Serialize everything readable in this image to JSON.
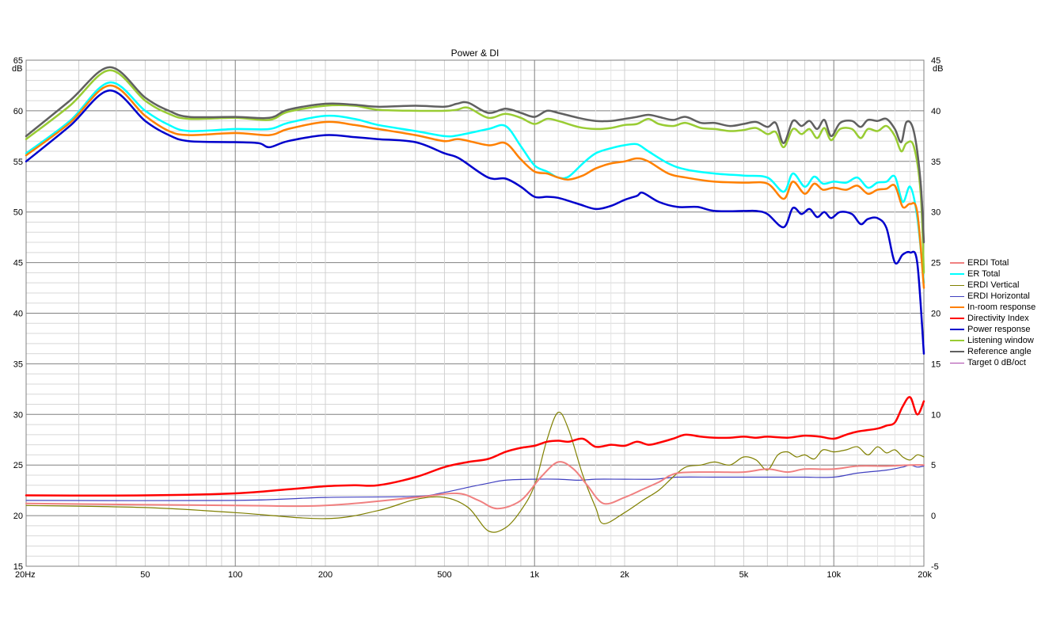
{
  "chart_data": {
    "type": "line",
    "title": "Power & DI",
    "x_scale": "log",
    "xlim": [
      20,
      20000
    ],
    "ylim_left": [
      15,
      65
    ],
    "ylim_right": [
      -5,
      45
    ],
    "y_unit_left": "dB",
    "y_unit_right": "dB",
    "grid": true,
    "legend_position": "right",
    "x_ticks": [
      {
        "value": 20,
        "label": "20Hz"
      },
      {
        "value": 50,
        "label": "50"
      },
      {
        "value": 100,
        "label": "100"
      },
      {
        "value": 200,
        "label": "200"
      },
      {
        "value": 500,
        "label": "500"
      },
      {
        "value": 1000,
        "label": "1k"
      },
      {
        "value": 2000,
        "label": "2k"
      },
      {
        "value": 5000,
        "label": "5k"
      },
      {
        "value": 10000,
        "label": "10k"
      },
      {
        "value": 20000,
        "label": "20k"
      }
    ],
    "y_ticks_left": [
      65,
      60,
      55,
      50,
      45,
      40,
      35,
      30,
      25,
      20,
      15
    ],
    "y_ticks_right": [
      45,
      40,
      35,
      30,
      25,
      20,
      15,
      10,
      5,
      0,
      -5
    ],
    "series": [
      {
        "name": "ERDI Total",
        "axis": "right",
        "color": "#f08080",
        "width": 2,
        "x": [
          20,
          100,
          200,
          400,
          550,
          650,
          750,
          900,
          1050,
          1200,
          1350,
          1500,
          1700,
          2000,
          2300,
          2600,
          3000,
          4000,
          5000,
          6000,
          7000,
          8000,
          10000,
          12000,
          15000,
          18000,
          20000
        ],
        "y": [
          1.2,
          1.0,
          1.0,
          1.8,
          2.2,
          1.5,
          0.7,
          1.5,
          3.8,
          5.3,
          4.6,
          3.0,
          1.2,
          1.8,
          2.6,
          3.3,
          4.2,
          4.3,
          4.3,
          4.6,
          4.3,
          4.6,
          4.6,
          4.9,
          4.9,
          5.0,
          5.0
        ]
      },
      {
        "name": "ER Total",
        "axis": "left",
        "color": "#00ffff",
        "width": 2.5,
        "x": [
          20,
          28,
          38,
          50,
          60,
          70,
          100,
          130,
          150,
          200,
          250,
          300,
          400,
          500,
          560,
          700,
          800,
          900,
          1000,
          1100,
          1200,
          1300,
          1450,
          1600,
          1800,
          2000,
          2200,
          2400,
          2800,
          3200,
          4000,
          5000,
          6000,
          6800,
          7300,
          8000,
          8600,
          9200,
          10000,
          11000,
          12000,
          13000,
          14000,
          15000,
          16000,
          17000,
          18000,
          19000,
          20000
        ],
        "y": [
          55.8,
          59.0,
          62.8,
          60.0,
          58.6,
          58.0,
          58.2,
          58.2,
          58.8,
          59.5,
          59.2,
          58.6,
          58.0,
          57.5,
          57.6,
          58.2,
          58.5,
          56.5,
          54.6,
          54.0,
          53.4,
          53.5,
          54.8,
          55.8,
          56.3,
          56.6,
          56.7,
          56.0,
          54.8,
          54.2,
          53.8,
          53.6,
          53.4,
          52.0,
          53.8,
          52.5,
          53.5,
          52.8,
          53.0,
          52.9,
          53.4,
          52.4,
          52.9,
          53.0,
          53.5,
          51.0,
          52.5,
          49.5,
          43.0
        ]
      },
      {
        "name": "ERDI Vertical",
        "axis": "right",
        "color": "#808000",
        "width": 1.2,
        "x": [
          20,
          50,
          100,
          200,
          300,
          400,
          500,
          600,
          700,
          800,
          900,
          1000,
          1100,
          1200,
          1300,
          1450,
          1600,
          1700,
          2000,
          2300,
          2600,
          2900,
          3200,
          3600,
          4000,
          4500,
          5000,
          5500,
          6000,
          6500,
          7000,
          7500,
          8000,
          8600,
          9200,
          10000,
          11000,
          12000,
          13000,
          14000,
          15000,
          16000,
          17000,
          18000,
          19000,
          20000
        ],
        "y": [
          1.0,
          0.8,
          0.3,
          -0.3,
          0.5,
          1.6,
          1.8,
          0.8,
          -1.5,
          -1.2,
          0.5,
          3.0,
          7.5,
          10.2,
          8.5,
          4.0,
          0.8,
          -0.8,
          0.3,
          1.5,
          2.5,
          3.8,
          4.8,
          5.0,
          5.3,
          5.0,
          5.8,
          5.5,
          4.5,
          6.0,
          6.3,
          5.8,
          6.0,
          5.6,
          6.5,
          6.3,
          6.5,
          6.8,
          6.0,
          6.8,
          6.2,
          6.5,
          5.8,
          5.5,
          6.0,
          5.8
        ]
      },
      {
        "name": "ERDI Horizontal",
        "axis": "right",
        "color": "#4040c0",
        "width": 1.2,
        "x": [
          20,
          100,
          200,
          400,
          500,
          600,
          700,
          800,
          1000,
          1200,
          1400,
          1600,
          2000,
          2500,
          3000,
          4000,
          5000,
          6000,
          7000,
          8000,
          10000,
          12000,
          15000,
          17000,
          18000,
          19000,
          20000
        ],
        "y": [
          1.5,
          1.5,
          1.8,
          1.9,
          2.3,
          2.8,
          3.2,
          3.5,
          3.6,
          3.6,
          3.5,
          3.6,
          3.6,
          3.6,
          3.8,
          3.8,
          3.8,
          3.8,
          3.8,
          3.8,
          3.8,
          4.2,
          4.5,
          4.8,
          5.0,
          4.8,
          4.9
        ]
      },
      {
        "name": "In-room response",
        "axis": "left",
        "color": "#ff8000",
        "width": 2.5,
        "x": [
          20,
          28,
          38,
          50,
          60,
          70,
          100,
          130,
          150,
          200,
          250,
          300,
          400,
          500,
          560,
          700,
          800,
          900,
          1000,
          1100,
          1200,
          1300,
          1450,
          1600,
          1800,
          2000,
          2200,
          2400,
          2800,
          3200,
          4000,
          5000,
          6000,
          6800,
          7300,
          8000,
          8600,
          9200,
          10000,
          11000,
          12000,
          13000,
          14000,
          15000,
          16000,
          17000,
          18000,
          19000,
          20000
        ],
        "y": [
          55.6,
          58.8,
          62.5,
          59.5,
          58.0,
          57.6,
          57.8,
          57.6,
          58.2,
          58.9,
          58.6,
          58.2,
          57.6,
          57.0,
          57.2,
          56.6,
          56.8,
          55.2,
          54.0,
          53.8,
          53.4,
          53.2,
          53.6,
          54.3,
          54.8,
          55.0,
          55.3,
          55.0,
          53.8,
          53.4,
          53.0,
          52.9,
          52.8,
          51.3,
          53.0,
          51.8,
          52.8,
          52.2,
          52.4,
          52.2,
          52.6,
          51.8,
          52.2,
          52.3,
          52.6,
          50.5,
          50.8,
          50.0,
          42.5
        ]
      },
      {
        "name": "Directivity Index",
        "axis": "right",
        "color": "#ff0000",
        "width": 2.5,
        "x": [
          20,
          50,
          100,
          150,
          200,
          250,
          300,
          400,
          500,
          600,
          700,
          800,
          900,
          1000,
          1100,
          1200,
          1300,
          1450,
          1600,
          1800,
          2000,
          2200,
          2400,
          2600,
          2900,
          3200,
          3600,
          4000,
          4500,
          5000,
          5500,
          6000,
          7000,
          8000,
          9000,
          10000,
          11000,
          12000,
          14000,
          15000,
          16000,
          17000,
          18000,
          19000,
          20000
        ],
        "y": [
          2.0,
          2.0,
          2.2,
          2.6,
          2.9,
          3.0,
          3.0,
          3.8,
          4.8,
          5.3,
          5.6,
          6.3,
          6.7,
          6.9,
          7.3,
          7.4,
          7.3,
          7.6,
          6.8,
          7.0,
          6.9,
          7.3,
          7.0,
          7.2,
          7.6,
          8.0,
          7.8,
          7.7,
          7.7,
          7.8,
          7.7,
          7.8,
          7.7,
          7.9,
          7.8,
          7.6,
          8.0,
          8.3,
          8.6,
          8.9,
          9.2,
          10.8,
          11.7,
          10.0,
          11.3
        ]
      },
      {
        "name": "Power response",
        "axis": "left",
        "color": "#0000cc",
        "width": 2.5,
        "x": [
          20,
          28,
          38,
          50,
          60,
          70,
          100,
          120,
          130,
          150,
          200,
          250,
          300,
          400,
          500,
          560,
          700,
          800,
          900,
          1000,
          1100,
          1200,
          1400,
          1600,
          1800,
          2000,
          2200,
          2300,
          2600,
          3000,
          3500,
          4000,
          5000,
          5500,
          6000,
          6800,
          7300,
          7800,
          8300,
          8800,
          9300,
          9800,
          10500,
          11500,
          12300,
          13000,
          14000,
          15000,
          16000,
          17000,
          18000,
          19000,
          20000
        ],
        "y": [
          55.0,
          58.5,
          62.0,
          59.0,
          57.6,
          57.0,
          56.9,
          56.8,
          56.4,
          57.0,
          57.6,
          57.4,
          57.2,
          56.9,
          55.8,
          55.3,
          53.4,
          53.3,
          52.5,
          51.5,
          51.5,
          51.4,
          50.8,
          50.3,
          50.6,
          51.2,
          51.6,
          51.9,
          51.0,
          50.5,
          50.5,
          50.1,
          50.1,
          50.1,
          49.8,
          48.5,
          50.4,
          49.8,
          50.3,
          49.5,
          50.0,
          49.4,
          50.0,
          49.8,
          48.8,
          49.3,
          49.4,
          48.4,
          45.0,
          45.8,
          46.0,
          45.0,
          36.0
        ]
      },
      {
        "name": "Listening window",
        "axis": "left",
        "color": "#99cc33",
        "width": 2.5,
        "x": [
          20,
          28,
          38,
          50,
          60,
          70,
          100,
          130,
          150,
          200,
          250,
          300,
          400,
          500,
          550,
          600,
          700,
          800,
          900,
          1000,
          1100,
          1200,
          1400,
          1600,
          1800,
          2000,
          2200,
          2400,
          2600,
          2900,
          3200,
          3600,
          4000,
          4500,
          5000,
          5500,
          6000,
          6400,
          6800,
          7300,
          7800,
          8300,
          8800,
          9300,
          9800,
          10500,
          11500,
          12300,
          13000,
          14000,
          15000,
          16000,
          16800,
          17500,
          18500,
          19500,
          20000
        ],
        "y": [
          57.2,
          60.5,
          64.0,
          61.0,
          59.7,
          59.2,
          59.3,
          59.1,
          59.9,
          60.5,
          60.5,
          60.1,
          60.0,
          60.0,
          60.1,
          60.3,
          59.3,
          59.7,
          59.3,
          58.7,
          59.2,
          59.0,
          58.4,
          58.2,
          58.3,
          58.6,
          58.7,
          59.2,
          58.7,
          58.5,
          58.8,
          58.3,
          58.2,
          58.0,
          58.1,
          58.3,
          57.7,
          57.9,
          56.4,
          58.2,
          57.7,
          58.2,
          57.3,
          58.3,
          57.1,
          58.2,
          58.2,
          57.3,
          58.2,
          58.0,
          58.5,
          57.5,
          56.0,
          56.8,
          56.5,
          52.0,
          44.0
        ]
      },
      {
        "name": "Reference angle",
        "axis": "left",
        "color": "#606060",
        "width": 2.5,
        "x": [
          20,
          28,
          38,
          50,
          60,
          70,
          100,
          130,
          150,
          200,
          250,
          300,
          400,
          500,
          550,
          600,
          700,
          800,
          900,
          1000,
          1100,
          1200,
          1400,
          1600,
          1800,
          2000,
          2200,
          2400,
          2600,
          2900,
          3200,
          3600,
          4000,
          4500,
          5000,
          5500,
          6000,
          6400,
          6800,
          7300,
          7800,
          8300,
          8800,
          9300,
          9800,
          10500,
          11500,
          12300,
          13000,
          14000,
          15000,
          16000,
          16800,
          17500,
          18500,
          19500,
          20000
        ],
        "y": [
          57.5,
          61.0,
          64.3,
          61.3,
          60.0,
          59.4,
          59.4,
          59.3,
          60.1,
          60.7,
          60.6,
          60.4,
          60.5,
          60.4,
          60.7,
          60.8,
          59.8,
          60.2,
          59.8,
          59.4,
          60.0,
          59.8,
          59.3,
          59.0,
          59.0,
          59.2,
          59.4,
          59.6,
          59.4,
          59.1,
          59.4,
          58.8,
          58.8,
          58.5,
          58.7,
          58.9,
          58.4,
          58.8,
          56.8,
          59.0,
          58.5,
          59.0,
          58.2,
          59.1,
          57.5,
          58.8,
          59.0,
          58.4,
          59.1,
          59.0,
          59.2,
          58.2,
          56.9,
          58.9,
          58.0,
          53.0,
          47.0
        ]
      },
      {
        "name": "Target 0 dB/oct",
        "axis": "left",
        "color": "#aa44aa",
        "width": 1.5,
        "x": [
          20
        ],
        "y": [
          null
        ]
      }
    ]
  }
}
